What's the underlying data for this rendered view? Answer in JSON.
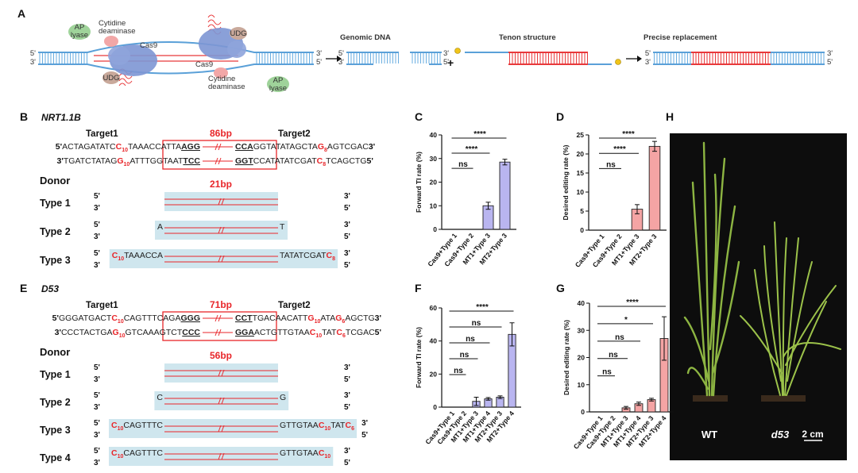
{
  "panel_a": {
    "label": "A",
    "ap_lyase_left": [
      "AP",
      "lyase"
    ],
    "cytidine_deaminase_left": [
      "Cytidine",
      "deaminase"
    ],
    "cas9_left": "Cas9",
    "udg_left": "UDG",
    "cas9_right": "Cas9",
    "udg_right": "UDG",
    "cytidine_deaminase_right": [
      "Cytidine",
      "deaminase"
    ],
    "ap_lyase_right": [
      "AP",
      "lyase"
    ],
    "ends": {
      "duplex_left": [
        "5'",
        "3'"
      ],
      "duplex_right": [
        "3'",
        "5'"
      ],
      "genomic_left": [
        "5'",
        "3'"
      ],
      "fragment_right": [
        "3'",
        "5'"
      ],
      "replacement_left": [
        "5'",
        "3'"
      ],
      "replacement_right": [
        "3'",
        "5'"
      ]
    },
    "genomic_dna": "Genomic DNA",
    "plus": "+",
    "tenon_structure": "Tenon structure",
    "precise_replacement": "Precise replacement"
  },
  "panel_b": {
    "label": "B",
    "gene": "NRT1.1B",
    "target1": "Target1",
    "target2": "Target2",
    "insert_length": "86bp",
    "top_strand": {
      "left": [
        "5'",
        "ACTAGATATC",
        "C",
        "10",
        "TAAACCATTA",
        "AGG"
      ],
      "right": [
        "CCA",
        "GGTATATAGCTA",
        "G",
        "8",
        "AGTCGAC",
        "3'"
      ]
    },
    "bottom_strand": {
      "left": [
        "3'",
        "TGATCTATAG",
        "G",
        "10",
        "ATTTGGTAAT",
        "TCC"
      ],
      "right": [
        "GGT",
        "CCATATATCGAT",
        "C",
        "8",
        "TCAGCTG",
        "5'"
      ]
    },
    "donor_heading": "Donor",
    "donor_length": "21bp",
    "donors": [
      {
        "name": "Type 1",
        "left_ends": [
          "5'",
          "3'"
        ],
        "right_ends": [
          "3'",
          "5'"
        ]
      },
      {
        "name": "Type 2",
        "left_ends": [
          "5'",
          "3'"
        ],
        "right_ends": [
          "3'",
          "5'"
        ],
        "left_arm": [
          "A"
        ],
        "right_arm": [
          "T"
        ]
      },
      {
        "name": "Type 3",
        "left_ends": [
          "5'",
          "3'"
        ],
        "right_ends": [
          "3'",
          "5'"
        ],
        "left_arm": [
          "C",
          "10",
          "TAAACCA"
        ],
        "right_arm": [
          "TATATCGAT",
          "C",
          "8"
        ]
      }
    ]
  },
  "panel_e": {
    "label": "E",
    "gene": "D53",
    "target1": "Target1",
    "target2": "Target2",
    "insert_length": "71bp",
    "top_strand": {
      "left": [
        "5'",
        "GGGATGACT",
        "C",
        "10",
        "CAGTTTCAGA",
        "GGG"
      ],
      "right": [
        "CCT",
        "TGACAACATT",
        "G",
        "10",
        "ATA",
        "G",
        "6",
        "AGCTG",
        "3'"
      ]
    },
    "bottom_strand": {
      "left": [
        "3'",
        "CCCTACTGA",
        "G",
        "10",
        "GTCAAAGTCT",
        "CCC"
      ],
      "right": [
        "GGA",
        "ACTGTTGTAA",
        "C",
        "10",
        "TAT",
        "C",
        "6",
        "TCGAC",
        "5'"
      ]
    },
    "donor_heading": "Donor",
    "donor_length": "56bp",
    "donors": [
      {
        "name": "Type 1",
        "left_ends": [
          "5'",
          "3'"
        ],
        "right_ends": [
          "3'",
          "5'"
        ]
      },
      {
        "name": "Type 2",
        "left_ends": [
          "5'",
          "3'"
        ],
        "right_ends": [
          "3'",
          "5'"
        ],
        "left_arm": [
          "C"
        ],
        "right_arm": [
          "G"
        ]
      },
      {
        "name": "Type 3",
        "left_ends": [
          "5'",
          "3'"
        ],
        "right_ends": [
          "3'",
          "5'"
        ],
        "left_arm": [
          "C",
          "10",
          "CAGTTTC"
        ],
        "right_arm": [
          "GTTGTAA",
          "C",
          "10",
          "TAT",
          "C",
          "6"
        ]
      },
      {
        "name": "Type 4",
        "left_ends": [
          "5'",
          "3'"
        ],
        "right_ends": [
          "3'",
          "5'"
        ],
        "left_arm": [
          "C",
          "10",
          "CAGTTTC"
        ],
        "right_arm": [
          "GTTGTAA",
          "C",
          "10"
        ]
      }
    ]
  },
  "chart_data": [
    {
      "type": "bar",
      "panel_label": "C",
      "y_label": "Forward TI rate (%)",
      "categories": [
        "Cas9+Type 1",
        "Cas9+Type 2",
        "MT1+Type 3",
        "MT2+Type 3"
      ],
      "values": [
        0,
        0,
        10,
        28.5
      ],
      "errors": [
        0,
        0,
        1.5,
        1.2
      ],
      "color": "#b9b5f0",
      "ylim": [
        0,
        40
      ],
      "yticks": [
        0,
        10,
        20,
        30,
        40
      ],
      "comparisons": [
        {
          "label": "****",
          "between": [
            0,
            3
          ]
        },
        {
          "label": "****",
          "between": [
            0,
            2
          ]
        },
        {
          "label": "ns",
          "between": [
            0,
            1
          ]
        }
      ]
    },
    {
      "type": "bar",
      "panel_label": "D",
      "y_label": "Desired editing rate (%)",
      "categories": [
        "Cas9+Type 1",
        "Cas9+Type 2",
        "MT1+Type 3",
        "MT2+Type 3"
      ],
      "values": [
        0,
        0,
        5.5,
        22
      ],
      "errors": [
        0,
        0,
        1.2,
        1.3
      ],
      "color": "#f4a4a4",
      "ylim": [
        0,
        25
      ],
      "yticks": [
        0,
        5,
        10,
        15,
        20,
        25
      ],
      "comparisons": [
        {
          "label": "****",
          "between": [
            0,
            3
          ]
        },
        {
          "label": "****",
          "between": [
            0,
            2
          ]
        },
        {
          "label": "ns",
          "between": [
            0,
            1
          ]
        }
      ]
    },
    {
      "type": "bar",
      "panel_label": "F",
      "y_label": "Forward TI rate (%)",
      "categories": [
        "Cas9+Type 1",
        "Cas9+Type 2",
        "MT1+Type 3",
        "MT1+Type 4",
        "MT2+Type 3",
        "MT2+Type 4"
      ],
      "values": [
        0,
        0,
        3.5,
        5,
        6,
        44
      ],
      "errors": [
        0,
        0,
        2.5,
        0.8,
        0.8,
        7
      ],
      "color": "#b9b5f0",
      "ylim": [
        0,
        60
      ],
      "yticks": [
        0,
        20,
        40,
        60
      ],
      "comparisons": [
        {
          "label": "****",
          "between": [
            0,
            5
          ]
        },
        {
          "label": "ns",
          "between": [
            0,
            4
          ]
        },
        {
          "label": "ns",
          "between": [
            0,
            3
          ]
        },
        {
          "label": "ns",
          "between": [
            0,
            2
          ]
        },
        {
          "label": "ns",
          "between": [
            0,
            1
          ]
        }
      ]
    },
    {
      "type": "bar",
      "panel_label": "G",
      "y_label": "Desired editing rate (%)",
      "categories": [
        "Cas9+Type 1",
        "Cas9+Type 2",
        "MT1+Type 3",
        "MT1+Type 4",
        "MT2+Type 3",
        "MT2+Type 4"
      ],
      "values": [
        0,
        0,
        1.5,
        3,
        4.5,
        27
      ],
      "errors": [
        0,
        0,
        0.5,
        0.6,
        0.5,
        8
      ],
      "color": "#f4a4a4",
      "ylim": [
        0,
        40
      ],
      "yticks": [
        0,
        10,
        20,
        30,
        40
      ],
      "comparisons": [
        {
          "label": "****",
          "between": [
            0,
            5
          ]
        },
        {
          "label": "*",
          "between": [
            0,
            4
          ]
        },
        {
          "label": "ns",
          "between": [
            0,
            3
          ]
        },
        {
          "label": "ns",
          "between": [
            0,
            2
          ]
        },
        {
          "label": "ns",
          "between": [
            0,
            1
          ]
        }
      ]
    }
  ],
  "panel_h": {
    "label": "H",
    "wild_type": "WT",
    "mutant": "d53",
    "scale_bar": "2 cm"
  }
}
